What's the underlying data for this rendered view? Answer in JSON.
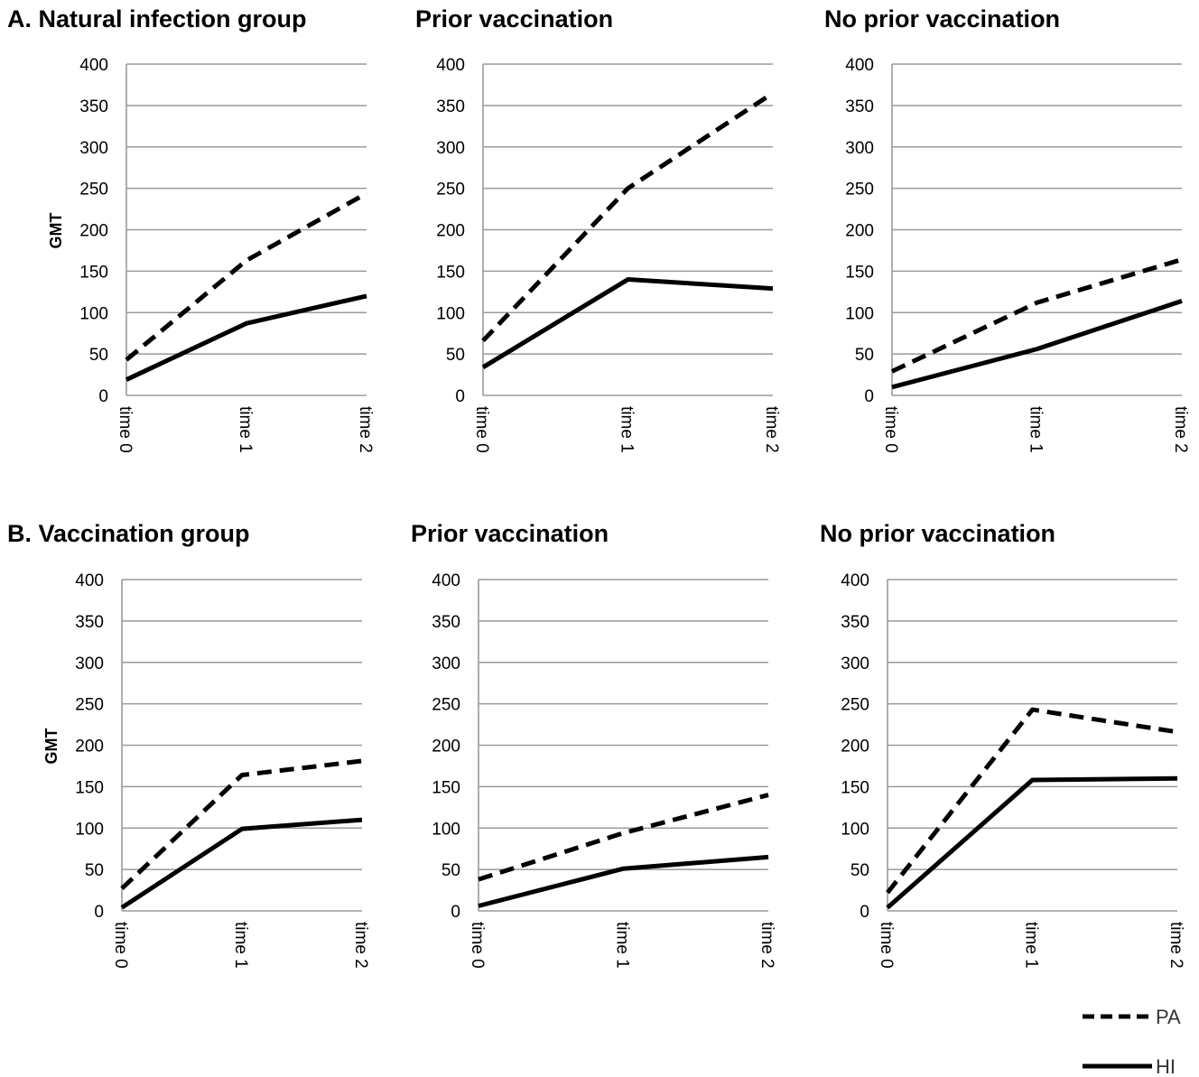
{
  "chart_data": [
    {
      "type": "line",
      "title": "A. Natural infection group",
      "ylabel": "GMT",
      "categories": [
        "time 0",
        "time 1",
        "time 2"
      ],
      "ylim": [
        0,
        400
      ],
      "yticks": [
        "0",
        "50",
        "100",
        "150",
        "200",
        "250",
        "300",
        "350",
        "400"
      ],
      "series": [
        {
          "name": "PA",
          "style": "dashed",
          "values": [
            43,
            163,
            244
          ]
        },
        {
          "name": "HI",
          "style": "solid",
          "values": [
            19,
            87,
            120
          ]
        }
      ]
    },
    {
      "type": "line",
      "title": "Prior vaccination",
      "ylabel": "",
      "categories": [
        "time 0",
        "time 1",
        "time 2"
      ],
      "ylim": [
        0,
        400
      ],
      "yticks": [
        "0",
        "50",
        "100",
        "150",
        "200",
        "250",
        "300",
        "350",
        "400"
      ],
      "series": [
        {
          "name": "PA",
          "style": "dashed",
          "values": [
            66,
            250,
            365
          ]
        },
        {
          "name": "HI",
          "style": "solid",
          "values": [
            34,
            140,
            129
          ]
        }
      ]
    },
    {
      "type": "line",
      "title": "No prior vaccination",
      "ylabel": "",
      "categories": [
        "time 0",
        "time 1",
        "time 2"
      ],
      "ylim": [
        0,
        400
      ],
      "yticks": [
        "0",
        "50",
        "100",
        "150",
        "200",
        "250",
        "300",
        "350",
        "400"
      ],
      "series": [
        {
          "name": "PA",
          "style": "dashed",
          "values": [
            29,
            112,
            164
          ]
        },
        {
          "name": "HI",
          "style": "solid",
          "values": [
            10,
            56,
            114
          ]
        }
      ]
    },
    {
      "type": "line",
      "title": "B. Vaccination group",
      "ylabel": "GMT",
      "categories": [
        "time 0",
        "time 1",
        "time 2"
      ],
      "ylim": [
        0,
        400
      ],
      "yticks": [
        "0",
        "50",
        "100",
        "150",
        "200",
        "250",
        "300",
        "350",
        "400"
      ],
      "series": [
        {
          "name": "PA",
          "style": "dashed",
          "values": [
            27,
            164,
            181
          ]
        },
        {
          "name": "HI",
          "style": "solid",
          "values": [
            4,
            99,
            110
          ]
        }
      ]
    },
    {
      "type": "line",
      "title": "Prior vaccination",
      "ylabel": "",
      "categories": [
        "time 0",
        "time 1",
        "time 2"
      ],
      "ylim": [
        0,
        400
      ],
      "yticks": [
        "0",
        "50",
        "100",
        "150",
        "200",
        "250",
        "300",
        "350",
        "400"
      ],
      "series": [
        {
          "name": "PA",
          "style": "dashed",
          "values": [
            38,
            94,
            140
          ]
        },
        {
          "name": "HI",
          "style": "solid",
          "values": [
            6,
            51,
            65
          ]
        }
      ]
    },
    {
      "type": "line",
      "title": "No prior vaccination",
      "ylabel": "",
      "categories": [
        "time 0",
        "time 1",
        "time 2"
      ],
      "ylim": [
        0,
        400
      ],
      "yticks": [
        "0",
        "50",
        "100",
        "150",
        "200",
        "250",
        "300",
        "350",
        "400"
      ],
      "series": [
        {
          "name": "PA",
          "style": "dashed",
          "values": [
            22,
            243,
            216
          ]
        },
        {
          "name": "HI",
          "style": "solid",
          "values": [
            4,
            158,
            160
          ]
        }
      ]
    }
  ],
  "legend": {
    "placement": "bottom-right",
    "items": [
      {
        "label": "PA",
        "style": "dashed"
      },
      {
        "label": "HI",
        "style": "solid"
      }
    ]
  },
  "colors": {
    "line": "#000000",
    "grid": "#9a9a9a"
  }
}
